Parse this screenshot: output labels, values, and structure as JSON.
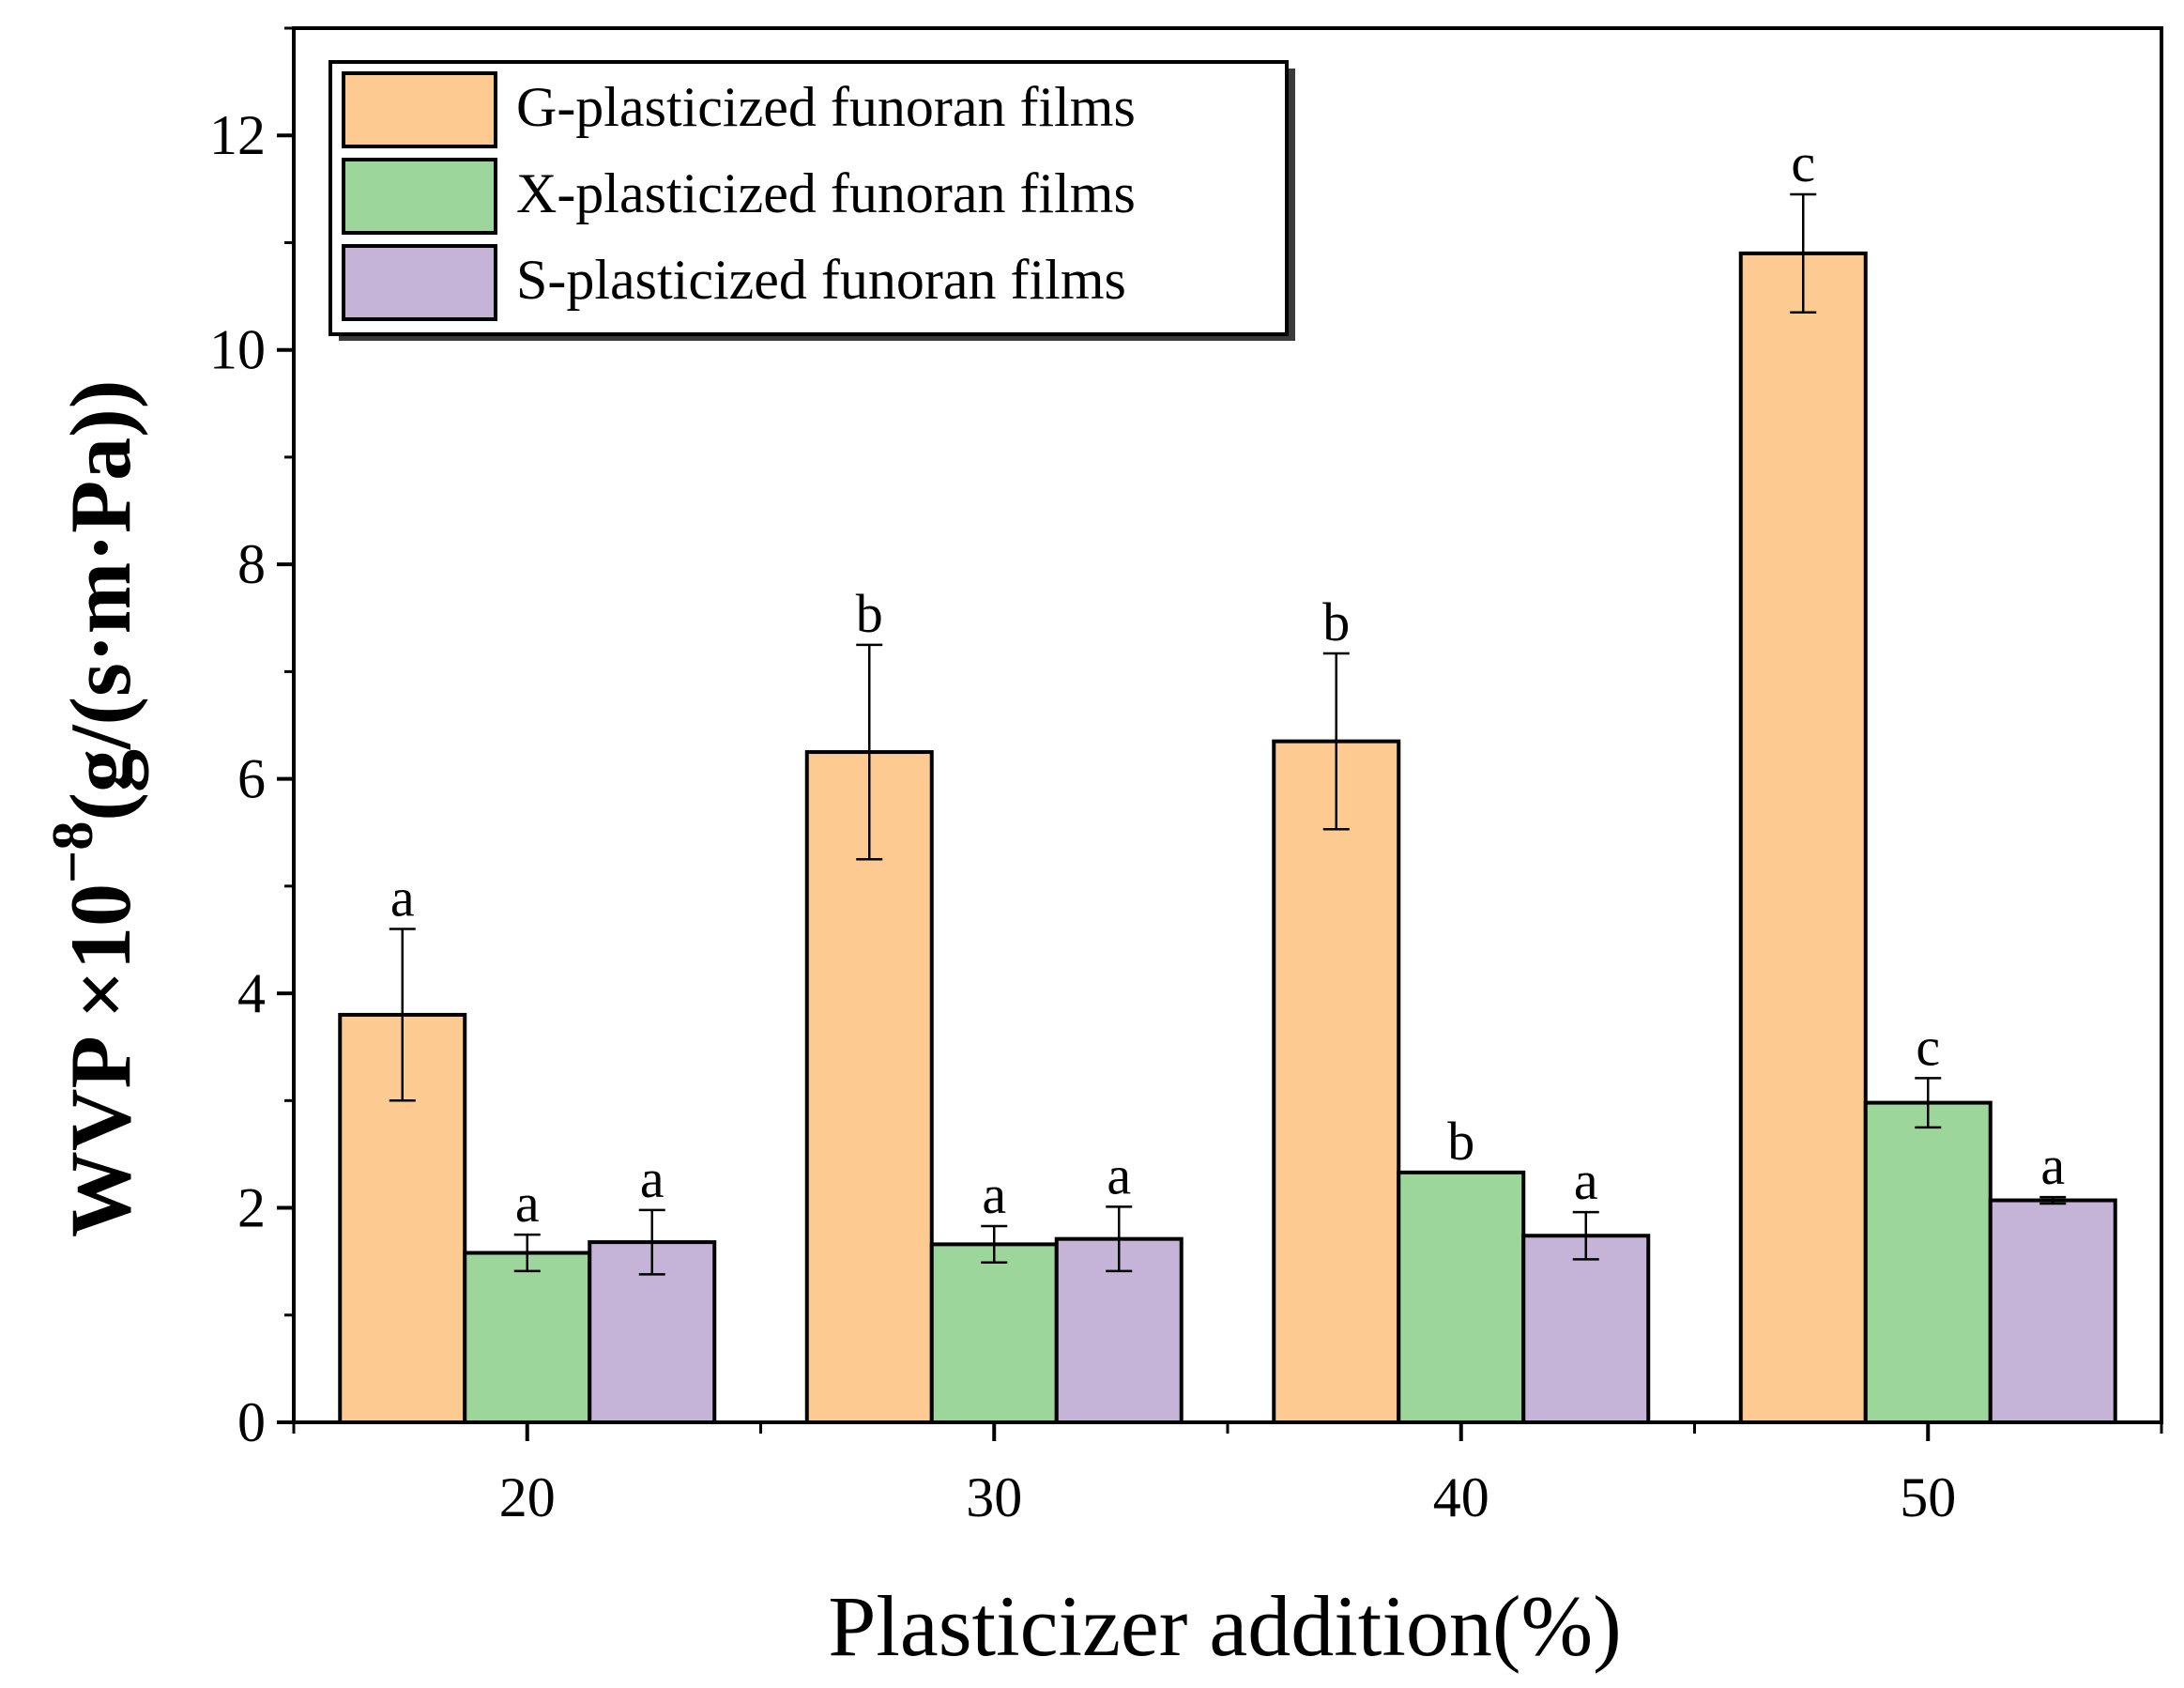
{
  "chart_data": {
    "type": "bar",
    "xlabel": "Plasticizer addition(%)",
    "ylabel_main": "WVP ×10",
    "ylabel_exp": "−8",
    "ylabel_unit": "(g/(s·m·Pa))",
    "categories": [
      "20",
      "30",
      "40",
      "50"
    ],
    "ylim": [
      0,
      13
    ],
    "yticks": [
      0,
      2,
      4,
      6,
      8,
      10,
      12
    ],
    "ytick_labels": [
      "0",
      "2",
      "4",
      "6",
      "8",
      "10",
      "12"
    ],
    "grid": false,
    "legend_position": "top-left",
    "series": [
      {
        "name": "G-plasticized funoran films",
        "color": "#FDCB92",
        "values": [
          3.8,
          6.25,
          6.35,
          10.9
        ],
        "errors": [
          0.8,
          1.0,
          0.82,
          0.55
        ],
        "letters": [
          "a",
          "b",
          "b",
          "c"
        ]
      },
      {
        "name": "X-plasticized funoran films",
        "color": "#9CD69A",
        "values": [
          1.58,
          1.66,
          2.33,
          2.98
        ],
        "errors": [
          0.17,
          0.17,
          0.0,
          0.23
        ],
        "letters": [
          "a",
          "a",
          "b",
          "c"
        ]
      },
      {
        "name": "S-plasticized funoran films",
        "color": "#C5B3D8",
        "values": [
          1.68,
          1.71,
          1.74,
          2.07
        ],
        "errors": [
          0.3,
          0.3,
          0.22,
          0.03
        ],
        "letters": [
          "a",
          "a",
          "a",
          "a"
        ]
      }
    ]
  }
}
